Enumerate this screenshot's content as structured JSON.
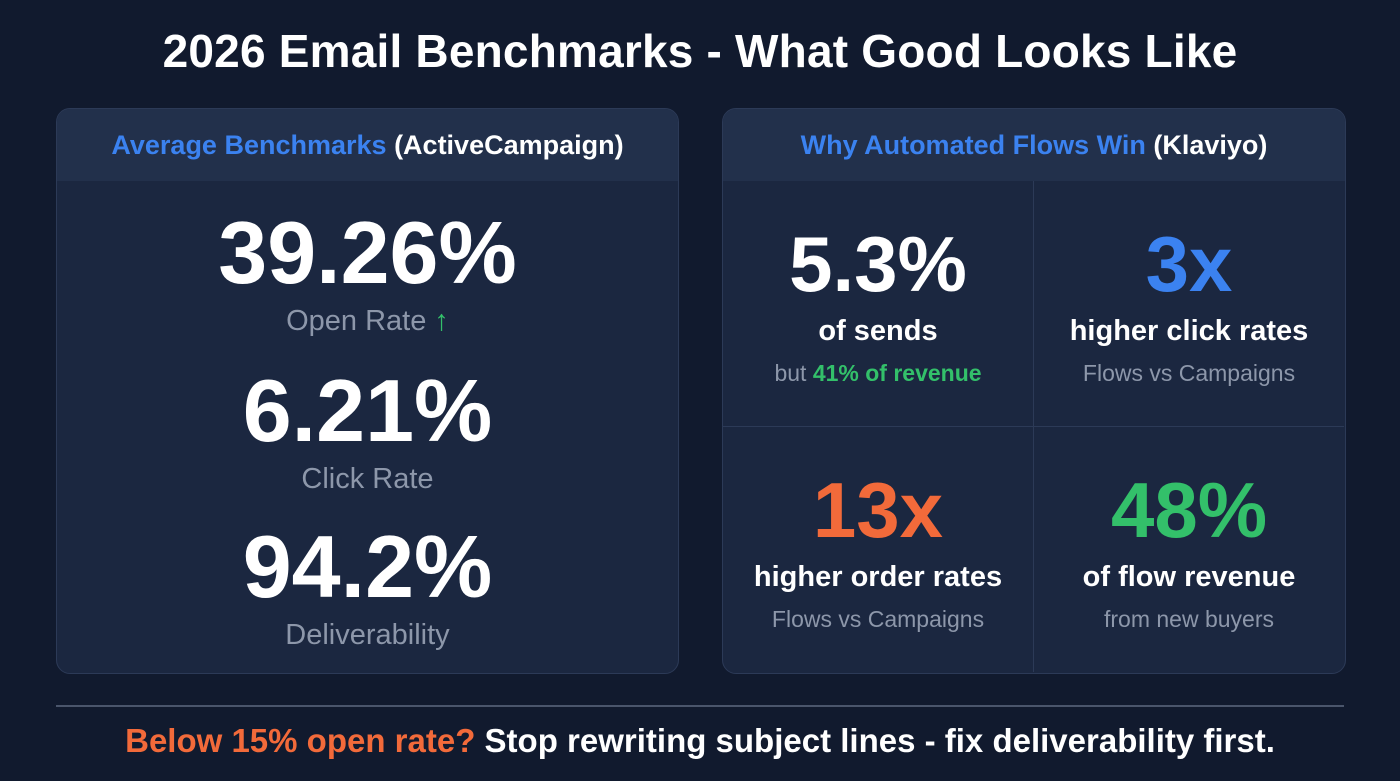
{
  "title": "2026 Email Benchmarks - What Good Looks Like",
  "left_panel": {
    "header_accent": "Average Benchmarks",
    "header_source": "(ActiveCampaign)",
    "stats": [
      {
        "value": "39.26%",
        "label": "Open Rate",
        "trend_icon": "↑"
      },
      {
        "value": "6.21%",
        "label": "Click Rate"
      },
      {
        "value": "94.2%",
        "label": "Deliverability"
      }
    ]
  },
  "right_panel": {
    "header_accent": "Why Automated Flows Win",
    "header_source": "(Klaviyo)",
    "cells": [
      {
        "value": "5.3%",
        "line1": "of sends",
        "line2_prefix": "but",
        "line2_highlight": "41% of revenue"
      },
      {
        "value": "3x",
        "line1": "higher click rates",
        "line2": "Flows vs Campaigns"
      },
      {
        "value": "13x",
        "line1": "higher order rates",
        "line2": "Flows vs Campaigns"
      },
      {
        "value": "48%",
        "line1": "of flow revenue",
        "line2": "from new buyers"
      }
    ]
  },
  "footer": {
    "highlight": "Below 15% open rate?",
    "text": "Stop rewriting subject lines - fix deliverability first."
  },
  "colors": {
    "background": "#111a2e",
    "panel": "#1b2740",
    "blue": "#3b82f0",
    "orange": "#f26a3a",
    "green": "#33c06a"
  }
}
